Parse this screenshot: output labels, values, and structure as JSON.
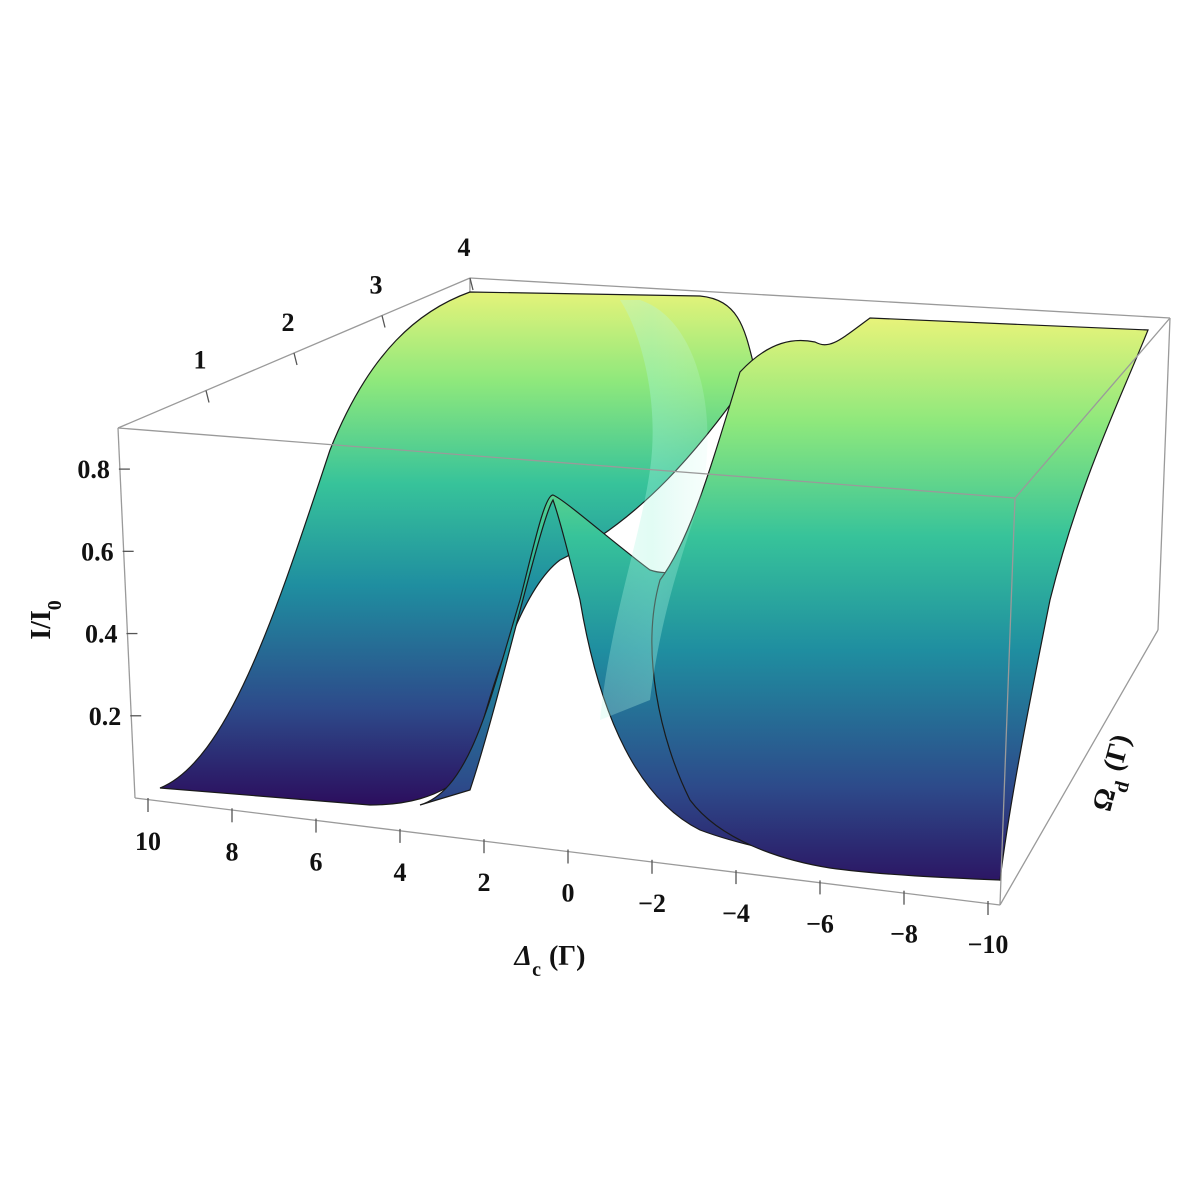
{
  "chart_data": {
    "type": "surface3d",
    "z_label": {
      "main": "I/I",
      "sub": "0"
    },
    "x_label": {
      "main": "Δ",
      "sub": "c",
      "unit": "(Γ)"
    },
    "y_label": {
      "main": "Ω",
      "sub": "d",
      "unit": "(Γ)"
    },
    "x_ticks": [
      "10",
      "8",
      "6",
      "4",
      "2",
      "0",
      "−2",
      "−4",
      "−6",
      "−8",
      "−10"
    ],
    "y_ticks": [
      "1",
      "2",
      "3",
      "4"
    ],
    "z_ticks": [
      "0.2",
      "0.4",
      "0.6",
      "0.8"
    ],
    "x_range": [
      10,
      -10
    ],
    "y_range": [
      0,
      4
    ],
    "z_range": [
      0,
      0.9
    ],
    "surface_profiles": {
      "front_edge_omega_0": {
        "x": [
          10,
          8,
          6,
          4,
          3,
          2,
          1,
          0.5,
          0,
          -0.5,
          -1,
          -2,
          -3,
          -4,
          -6,
          -8,
          -10
        ],
        "z": [
          0.05,
          0.04,
          0.04,
          0.05,
          0.07,
          0.15,
          0.45,
          0.65,
          0.75,
          0.65,
          0.45,
          0.2,
          0.12,
          0.08,
          0.05,
          0.04,
          0.03
        ]
      },
      "back_edge_omega_4": {
        "x": [
          10,
          8,
          6,
          4,
          3,
          2,
          1,
          0,
          -1,
          -2,
          -3,
          -4,
          -6,
          -8,
          -10
        ],
        "z": [
          0.88,
          0.88,
          0.88,
          0.87,
          0.87,
          0.86,
          0.84,
          0.6,
          0.75,
          0.76,
          0.8,
          0.86,
          0.88,
          0.88,
          0.88
        ]
      }
    },
    "colormap": [
      "#2c1160",
      "#2d4a8a",
      "#1f8ea0",
      "#37c39a",
      "#8ee87c",
      "#e6f37a"
    ],
    "grid": false
  }
}
